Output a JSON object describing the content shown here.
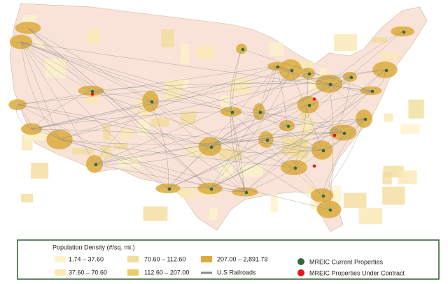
{
  "legend": {
    "title": "Population Density (#/sq. mi.)",
    "density_classes": [
      {
        "label": "1.74 – 37.60",
        "color": "#fdf3c9"
      },
      {
        "label": "37.60 – 70.60",
        "color": "#fae9b4"
      },
      {
        "label": "70.60 – 112.60",
        "color": "#f2dc9c"
      },
      {
        "label": "112.60 – 207.00",
        "color": "#ecc96a"
      },
      {
        "label": "207.00 – 2,891.79",
        "color": "#dcab3c"
      }
    ],
    "railroads": {
      "label": "U.S Railroads",
      "color": "#8a8a8a"
    },
    "markers": [
      {
        "label": "MREIC Current Properties",
        "color": "#2f6b3a"
      },
      {
        "label": "MREIC Properties Under Contract",
        "color": "#e8141b"
      }
    ]
  }
}
